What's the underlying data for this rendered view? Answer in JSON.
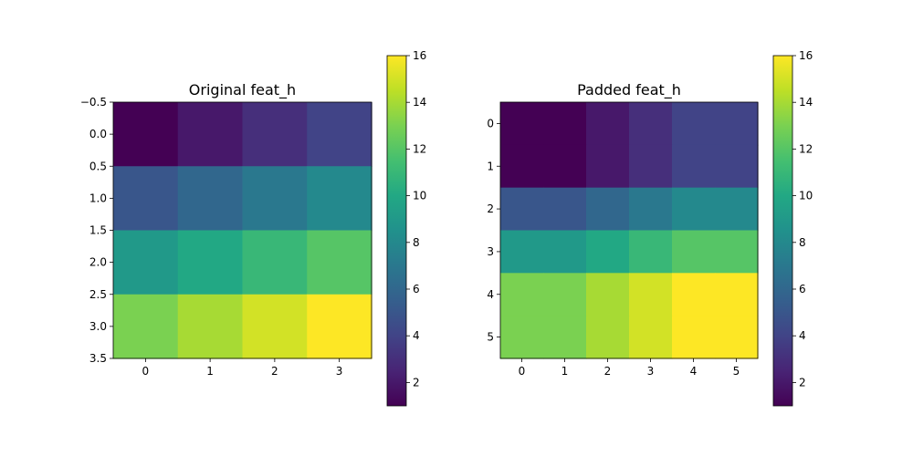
{
  "colormap": "viridis",
  "chart_data": [
    {
      "type": "heatmap",
      "title": "Original feat_h",
      "values": [
        [
          1,
          2,
          3,
          4
        ],
        [
          5,
          6,
          7,
          8
        ],
        [
          9,
          10,
          11,
          12
        ],
        [
          13,
          14,
          15,
          16
        ]
      ],
      "xlim": [
        -0.5,
        3.5
      ],
      "ylim": [
        3.5,
        -0.5
      ],
      "xticks": [
        0,
        1,
        2,
        3
      ],
      "xtick_labels": [
        "0",
        "1",
        "2",
        "3"
      ],
      "yticks": [
        -0.5,
        0,
        0.5,
        1,
        1.5,
        2,
        2.5,
        3,
        3.5
      ],
      "ytick_labels": [
        "−0.5",
        "0.0",
        "0.5",
        "1.0",
        "1.5",
        "2.0",
        "2.5",
        "3.0",
        "3.5"
      ],
      "colorbar": {
        "min": 1,
        "max": 16,
        "ticks": [
          2,
          4,
          6,
          8,
          10,
          12,
          14,
          16
        ],
        "tick_labels": [
          "2",
          "4",
          "6",
          "8",
          "10",
          "12",
          "14",
          "16"
        ]
      }
    },
    {
      "type": "heatmap",
      "title": "Padded feat_h",
      "values": [
        [
          1,
          1,
          2,
          3,
          4,
          4
        ],
        [
          1,
          1,
          2,
          3,
          4,
          4
        ],
        [
          5,
          5,
          6,
          7,
          8,
          8
        ],
        [
          9,
          9,
          10,
          11,
          12,
          12
        ],
        [
          13,
          13,
          14,
          15,
          16,
          16
        ],
        [
          13,
          13,
          14,
          15,
          16,
          16
        ]
      ],
      "xlim": [
        -0.5,
        5.5
      ],
      "ylim": [
        5.5,
        -0.5
      ],
      "xticks": [
        0,
        1,
        2,
        3,
        4,
        5
      ],
      "xtick_labels": [
        "0",
        "1",
        "2",
        "3",
        "4",
        "5"
      ],
      "yticks": [
        0,
        1,
        2,
        3,
        4,
        5
      ],
      "ytick_labels": [
        "0",
        "1",
        "2",
        "3",
        "4",
        "5"
      ],
      "colorbar": {
        "min": 1,
        "max": 16,
        "ticks": [
          2,
          4,
          6,
          8,
          10,
          12,
          14,
          16
        ],
        "tick_labels": [
          "2",
          "4",
          "6",
          "8",
          "10",
          "12",
          "14",
          "16"
        ]
      }
    }
  ]
}
